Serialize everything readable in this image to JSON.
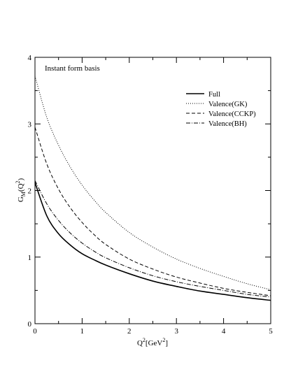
{
  "chart_data": {
    "type": "line",
    "annotation": "Instant form basis",
    "ylabel": {
      "main": "G",
      "sub": "M",
      "rest": "(Q",
      "sup": "2",
      "end": ")"
    },
    "xlabel": {
      "main": "Q",
      "sup1": "2",
      "mid": "[GeV",
      "sup2": "2",
      "end": "]"
    },
    "xlim": [
      0,
      5
    ],
    "ylim": [
      0,
      4
    ],
    "xticks": [
      0,
      1,
      2,
      3,
      4,
      5
    ],
    "yticks": [
      0,
      1,
      2,
      3,
      4
    ],
    "grid": false,
    "legend_position": "top-right",
    "x": [
      0,
      0.25,
      0.5,
      0.75,
      1,
      1.25,
      1.5,
      2,
      2.5,
      3,
      3.5,
      4,
      4.5,
      5
    ],
    "series": [
      {
        "name": "Full",
        "style": "solid",
        "color": "#000000",
        "values": [
          2.12,
          1.62,
          1.35,
          1.18,
          1.05,
          0.96,
          0.88,
          0.75,
          0.64,
          0.56,
          0.49,
          0.44,
          0.39,
          0.35
        ]
      },
      {
        "name": "Valence(GK)",
        "style": "dotted",
        "color": "#000000",
        "values": [
          3.72,
          3.1,
          2.68,
          2.35,
          2.08,
          1.86,
          1.67,
          1.37,
          1.15,
          0.97,
          0.83,
          0.71,
          0.6,
          0.51
        ]
      },
      {
        "name": "Valence(CCKP)",
        "style": "dashed",
        "color": "#000000",
        "values": [
          2.95,
          2.4,
          2.02,
          1.74,
          1.52,
          1.34,
          1.19,
          0.97,
          0.82,
          0.7,
          0.61,
          0.53,
          0.47,
          0.42
        ]
      },
      {
        "name": "Valence(BH)",
        "style": "dashdot",
        "color": "#000000",
        "values": [
          2.15,
          1.8,
          1.55,
          1.36,
          1.21,
          1.09,
          0.99,
          0.84,
          0.72,
          0.63,
          0.56,
          0.5,
          0.44,
          0.4
        ]
      }
    ]
  }
}
